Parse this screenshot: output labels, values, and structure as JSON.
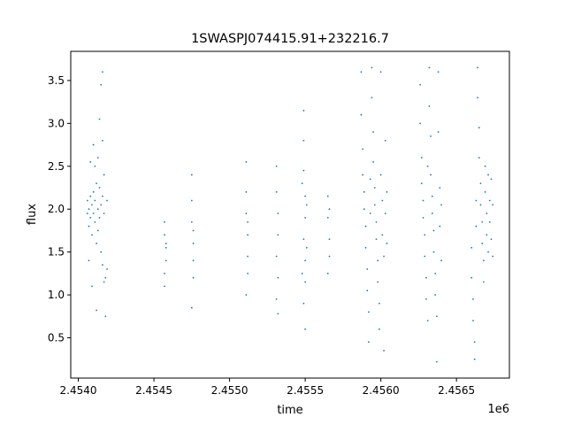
{
  "chart_data": {
    "type": "scatter",
    "title": "1SWASPJ074415.91+232216.7",
    "xlabel": "time",
    "ylabel": "flux",
    "x_offset_label": "1e6",
    "xlim": [
      2.45395,
      2.45685
    ],
    "ylim": [
      0.03,
      3.84
    ],
    "x_ticks": [
      2.454,
      2.4545,
      2.455,
      2.4555,
      2.456,
      2.4565
    ],
    "x_tick_labels": [
      "2.4540",
      "2.4545",
      "2.4550",
      "2.4555",
      "2.4560",
      "2.4565"
    ],
    "y_ticks": [
      0.5,
      1.0,
      1.5,
      2.0,
      2.5,
      3.0,
      3.5
    ],
    "y_tick_labels": [
      "0.5",
      "1.0",
      "1.5",
      "2.0",
      "2.5",
      "3.0",
      "3.5"
    ],
    "grid": false,
    "legend": "none",
    "marker_color": "#1f77b4",
    "series": [
      {
        "points": [
          [
            2.45406,
            1.95
          ],
          [
            2.45406,
            2.1
          ],
          [
            2.45407,
            1.8
          ],
          [
            2.45407,
            2.0
          ],
          [
            2.45408,
            2.15
          ],
          [
            2.45408,
            1.9
          ],
          [
            2.45409,
            2.05
          ],
          [
            2.45409,
            1.7
          ],
          [
            2.4541,
            2.2
          ],
          [
            2.4541,
            1.95
          ],
          [
            2.45411,
            1.85
          ],
          [
            2.45411,
            2.1
          ],
          [
            2.45412,
            2.3
          ],
          [
            2.45412,
            1.6
          ],
          [
            2.45413,
            2.0
          ],
          [
            2.45413,
            1.75
          ],
          [
            2.45414,
            2.25
          ],
          [
            2.45414,
            1.9
          ],
          [
            2.45415,
            2.05
          ],
          [
            2.45415,
            1.5
          ],
          [
            2.45416,
            2.15
          ],
          [
            2.45416,
            1.35
          ],
          [
            2.45417,
            1.95
          ],
          [
            2.45417,
            2.4
          ],
          [
            2.45408,
            2.55
          ],
          [
            2.45409,
            1.1
          ],
          [
            2.4541,
            2.75
          ],
          [
            2.45412,
            0.82
          ],
          [
            2.45413,
            2.6
          ],
          [
            2.45414,
            3.05
          ],
          [
            2.45415,
            3.45
          ],
          [
            2.45416,
            3.6
          ],
          [
            2.45418,
            0.75
          ],
          [
            2.45418,
            1.2
          ],
          [
            2.45419,
            1.3
          ],
          [
            2.45419,
            2.1
          ],
          [
            2.45407,
            1.4
          ],
          [
            2.45411,
            2.5
          ],
          [
            2.45416,
            2.8
          ],
          [
            2.45417,
            1.15
          ],
          [
            2.45457,
            1.85
          ],
          [
            2.45457,
            1.7
          ],
          [
            2.45458,
            1.55
          ],
          [
            2.45458,
            1.4
          ],
          [
            2.45457,
            1.25
          ],
          [
            2.45458,
            1.6
          ],
          [
            2.45457,
            1.1
          ],
          [
            2.45475,
            2.4
          ],
          [
            2.45475,
            2.1
          ],
          [
            2.45475,
            1.85
          ],
          [
            2.45476,
            1.6
          ],
          [
            2.45476,
            1.4
          ],
          [
            2.45476,
            1.2
          ],
          [
            2.45475,
            0.85
          ],
          [
            2.45476,
            1.75
          ],
          [
            2.45511,
            2.55
          ],
          [
            2.45511,
            2.2
          ],
          [
            2.45511,
            1.95
          ],
          [
            2.45512,
            1.7
          ],
          [
            2.45512,
            1.45
          ],
          [
            2.45512,
            1.25
          ],
          [
            2.45511,
            1.0
          ],
          [
            2.45512,
            1.85
          ],
          [
            2.45531,
            2.5
          ],
          [
            2.45531,
            2.2
          ],
          [
            2.45532,
            1.95
          ],
          [
            2.45532,
            1.7
          ],
          [
            2.45531,
            1.45
          ],
          [
            2.45532,
            1.2
          ],
          [
            2.45531,
            0.95
          ],
          [
            2.45532,
            0.78
          ],
          [
            2.45549,
            3.15
          ],
          [
            2.45549,
            2.8
          ],
          [
            2.45549,
            2.45
          ],
          [
            2.4555,
            2.15
          ],
          [
            2.4555,
            1.9
          ],
          [
            2.45549,
            1.65
          ],
          [
            2.4555,
            1.4
          ],
          [
            2.4555,
            1.15
          ],
          [
            2.45549,
            0.9
          ],
          [
            2.4555,
            0.6
          ],
          [
            2.45551,
            2.05
          ],
          [
            2.45551,
            1.55
          ],
          [
            2.45548,
            2.3
          ],
          [
            2.45548,
            1.25
          ],
          [
            2.45565,
            2.15
          ],
          [
            2.45565,
            1.9
          ],
          [
            2.45566,
            1.65
          ],
          [
            2.45566,
            1.45
          ],
          [
            2.45565,
            1.25
          ],
          [
            2.45566,
            2.0
          ],
          [
            2.45587,
            3.6
          ],
          [
            2.45587,
            3.1
          ],
          [
            2.45588,
            2.7
          ],
          [
            2.45588,
            2.4
          ],
          [
            2.45589,
            2.2
          ],
          [
            2.45589,
            2.0
          ],
          [
            2.4559,
            1.8
          ],
          [
            2.4559,
            1.55
          ],
          [
            2.45591,
            1.3
          ],
          [
            2.45591,
            1.05
          ],
          [
            2.45592,
            0.8
          ],
          [
            2.45592,
            0.45
          ],
          [
            2.45593,
            2.35
          ],
          [
            2.45593,
            1.95
          ],
          [
            2.45594,
            3.65
          ],
          [
            2.45594,
            3.3
          ],
          [
            2.45595,
            2.9
          ],
          [
            2.45595,
            2.55
          ],
          [
            2.45596,
            2.25
          ],
          [
            2.45596,
            2.05
          ],
          [
            2.45597,
            1.85
          ],
          [
            2.45597,
            1.65
          ],
          [
            2.45598,
            1.4
          ],
          [
            2.45598,
            1.15
          ],
          [
            2.45599,
            0.9
          ],
          [
            2.45599,
            0.6
          ],
          [
            2.456,
            3.6
          ],
          [
            2.456,
            2.4
          ],
          [
            2.45601,
            2.1
          ],
          [
            2.45601,
            1.7
          ],
          [
            2.45602,
            1.45
          ],
          [
            2.45602,
            0.35
          ],
          [
            2.45603,
            2.8
          ],
          [
            2.45603,
            1.95
          ],
          [
            2.45604,
            2.2
          ],
          [
            2.45604,
            1.6
          ],
          [
            2.45626,
            3.45
          ],
          [
            2.45626,
            3.0
          ],
          [
            2.45627,
            2.6
          ],
          [
            2.45627,
            2.3
          ],
          [
            2.45628,
            2.1
          ],
          [
            2.45628,
            1.9
          ],
          [
            2.45629,
            1.7
          ],
          [
            2.45629,
            1.45
          ],
          [
            2.4563,
            1.2
          ],
          [
            2.4563,
            0.95
          ],
          [
            2.45631,
            0.7
          ],
          [
            2.45631,
            2.5
          ],
          [
            2.45632,
            3.65
          ],
          [
            2.45632,
            3.2
          ],
          [
            2.45633,
            2.85
          ],
          [
            2.45633,
            2.4
          ],
          [
            2.45634,
            2.15
          ],
          [
            2.45634,
            1.95
          ],
          [
            2.45635,
            1.75
          ],
          [
            2.45635,
            1.5
          ],
          [
            2.45636,
            1.25
          ],
          [
            2.45636,
            1.0
          ],
          [
            2.45637,
            0.75
          ],
          [
            2.45637,
            0.22
          ],
          [
            2.45638,
            3.6
          ],
          [
            2.45638,
            2.9
          ],
          [
            2.45639,
            2.25
          ],
          [
            2.45639,
            1.8
          ],
          [
            2.4564,
            1.4
          ],
          [
            2.4564,
            2.05
          ],
          [
            2.4566,
            1.55
          ],
          [
            2.4566,
            1.2
          ],
          [
            2.45661,
            0.95
          ],
          [
            2.45661,
            0.7
          ],
          [
            2.45662,
            0.45
          ],
          [
            2.45662,
            0.25
          ],
          [
            2.45663,
            1.8
          ],
          [
            2.45663,
            2.1
          ],
          [
            2.45664,
            3.65
          ],
          [
            2.45664,
            3.3
          ],
          [
            2.45665,
            2.95
          ],
          [
            2.45665,
            2.6
          ],
          [
            2.45666,
            2.3
          ],
          [
            2.45666,
            2.05
          ],
          [
            2.45667,
            1.85
          ],
          [
            2.45667,
            1.6
          ],
          [
            2.45668,
            1.4
          ],
          [
            2.45668,
            1.15
          ],
          [
            2.45669,
            2.5
          ],
          [
            2.45669,
            2.2
          ],
          [
            2.4567,
            1.95
          ],
          [
            2.4567,
            1.7
          ],
          [
            2.45671,
            1.5
          ],
          [
            2.45671,
            2.4
          ],
          [
            2.45672,
            2.1
          ],
          [
            2.45672,
            1.85
          ],
          [
            2.45673,
            2.35
          ],
          [
            2.45673,
            1.65
          ],
          [
            2.45674,
            2.05
          ],
          [
            2.45674,
            1.45
          ]
        ]
      }
    ]
  }
}
